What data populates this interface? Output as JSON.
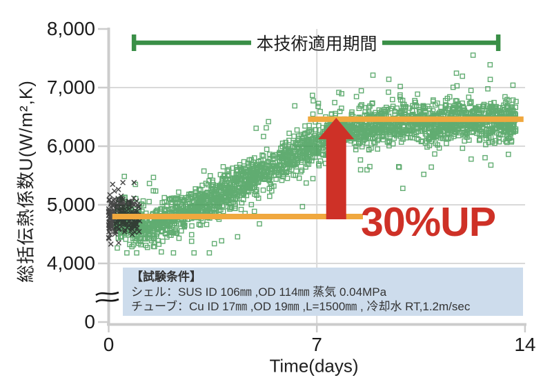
{
  "chart_data": {
    "type": "scatter",
    "xlabel": "Time(days)",
    "ylabel": "総括伝熱係数U(W/m²,K)",
    "x_range": [
      0,
      14
    ],
    "x_ticks": [
      {
        "value": 0,
        "label": "0"
      },
      {
        "value": 7,
        "label": "7"
      },
      {
        "value": 14,
        "label": "14"
      }
    ],
    "y_ticks": [
      {
        "value": 8000,
        "label": "8,000"
      },
      {
        "value": 7000,
        "label": "7,000"
      },
      {
        "value": 6000,
        "label": "6,000"
      },
      {
        "value": 5000,
        "label": "5,000"
      },
      {
        "value": 4000,
        "label": "4,000"
      },
      {
        "value": 0,
        "label": "0"
      }
    ],
    "axis_break_between": [
      0,
      4000
    ],
    "grid": true,
    "series": [
      {
        "name": "technology-applied-green-squares",
        "marker": "open-square",
        "count": 2600,
        "x_span": [
          0.25,
          13.7
        ],
        "trend_anchors": [
          [
            0.25,
            4750
          ],
          [
            0.8,
            4680
          ],
          [
            1.4,
            4580
          ],
          [
            2.0,
            4780
          ],
          [
            2.6,
            4930
          ],
          [
            3.2,
            5010
          ],
          [
            4.0,
            5240
          ],
          [
            5.0,
            5490
          ],
          [
            5.7,
            5700
          ],
          [
            6.4,
            5890
          ],
          [
            7.0,
            6030
          ],
          [
            7.6,
            6250
          ],
          [
            8.5,
            6310
          ],
          [
            9.5,
            6380
          ],
          [
            11.0,
            6400
          ],
          [
            12.5,
            6420
          ],
          [
            13.7,
            6440
          ]
        ],
        "spread": 200,
        "seed": 42
      },
      {
        "name": "baseline-black-x",
        "marker": "x-cross",
        "count": 220,
        "x_span": [
          0,
          1.05
        ],
        "center": 4800,
        "spread": 300,
        "seed": 7
      }
    ],
    "reference_lines": [
      {
        "name": "baseline-level",
        "value": 4800,
        "x_span": [
          0.12,
          8.55
        ]
      },
      {
        "name": "improved-level",
        "value": 6460,
        "x_span": [
          6.7,
          13.95
        ]
      }
    ],
    "annotations": {
      "period_label": "本技術適用期間",
      "period_span_days": [
        0.85,
        13.1
      ],
      "improvement_label": "30%UP",
      "arrow": {
        "x_day": 7.65,
        "from_value": 4800,
        "to_value": 6460
      }
    }
  },
  "condition_box": {
    "title": "【試験条件】",
    "lines": [
      "シェル：SUS ID 106㎜ ,OD 114㎜  蒸気 0.04MPa",
      "チューブ：Cu ID 17㎜ ,OD 19㎜ ,L=1500㎜ , 冷却水 RT,1.2m/sec"
    ]
  },
  "colors": {
    "scatter_green": "#3f9b53",
    "marker_black": "#2a2a2a",
    "bracket_green": "#3a8f47",
    "reference_orange": "#f0a83e",
    "arrow_red": "#ce3127",
    "up_text_red": "#ce3127",
    "grid_gray": "#d9d9d9",
    "axis_gray": "#cccccc",
    "condition_box_bg": "#cddcec"
  }
}
